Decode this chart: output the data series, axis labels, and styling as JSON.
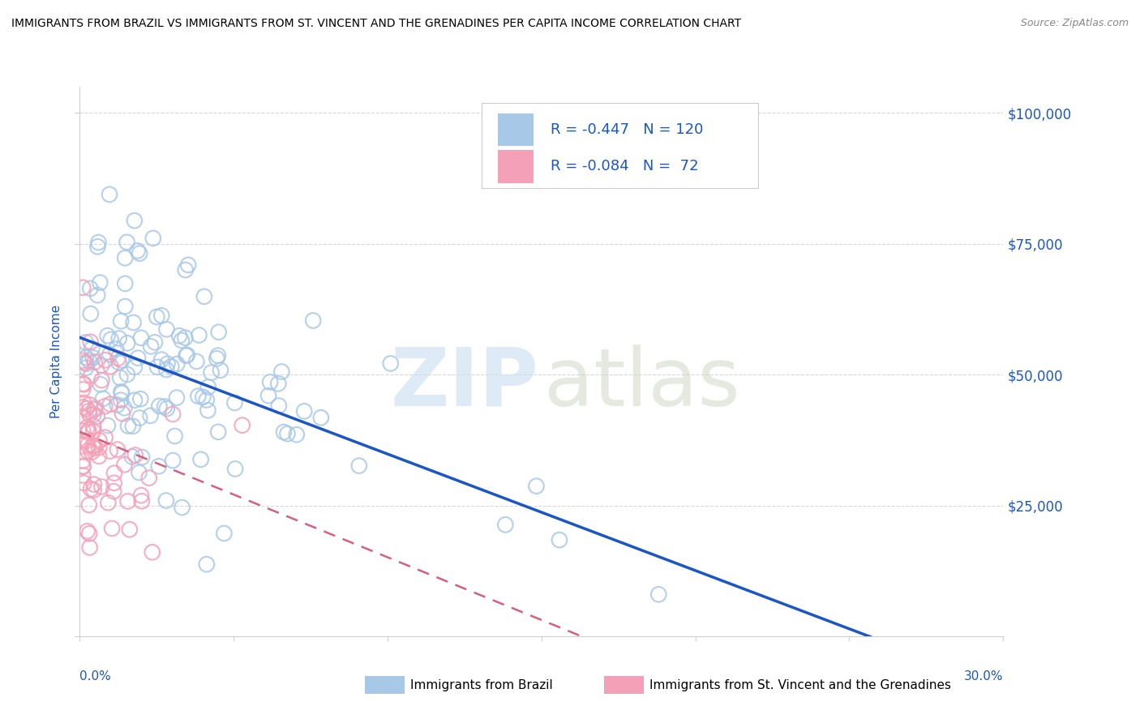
{
  "title": "IMMIGRANTS FROM BRAZIL VS IMMIGRANTS FROM ST. VINCENT AND THE GRENADINES PER CAPITA INCOME CORRELATION CHART",
  "source": "Source: ZipAtlas.com",
  "ylabel": "Per Capita Income",
  "r_brazil": -0.447,
  "n_brazil": 120,
  "r_svg": -0.084,
  "n_svg": 72,
  "color_brazil": "#a8c8e8",
  "color_svg": "#f4a0b8",
  "line_color_brazil": "#1a56c4",
  "line_color_svg": "#d46080",
  "legend_text_color": "#1a56c4",
  "legend_r_color": "#1a56c4",
  "yticks": [
    0,
    25000,
    50000,
    75000,
    100000
  ],
  "ymax": 105000,
  "xmax": 0.3,
  "watermark_zip_color": "#c8dff0",
  "watermark_atlas_color": "#d0d8c8",
  "grid_color": "#d8d8d8",
  "spine_color": "#d0d0d0"
}
